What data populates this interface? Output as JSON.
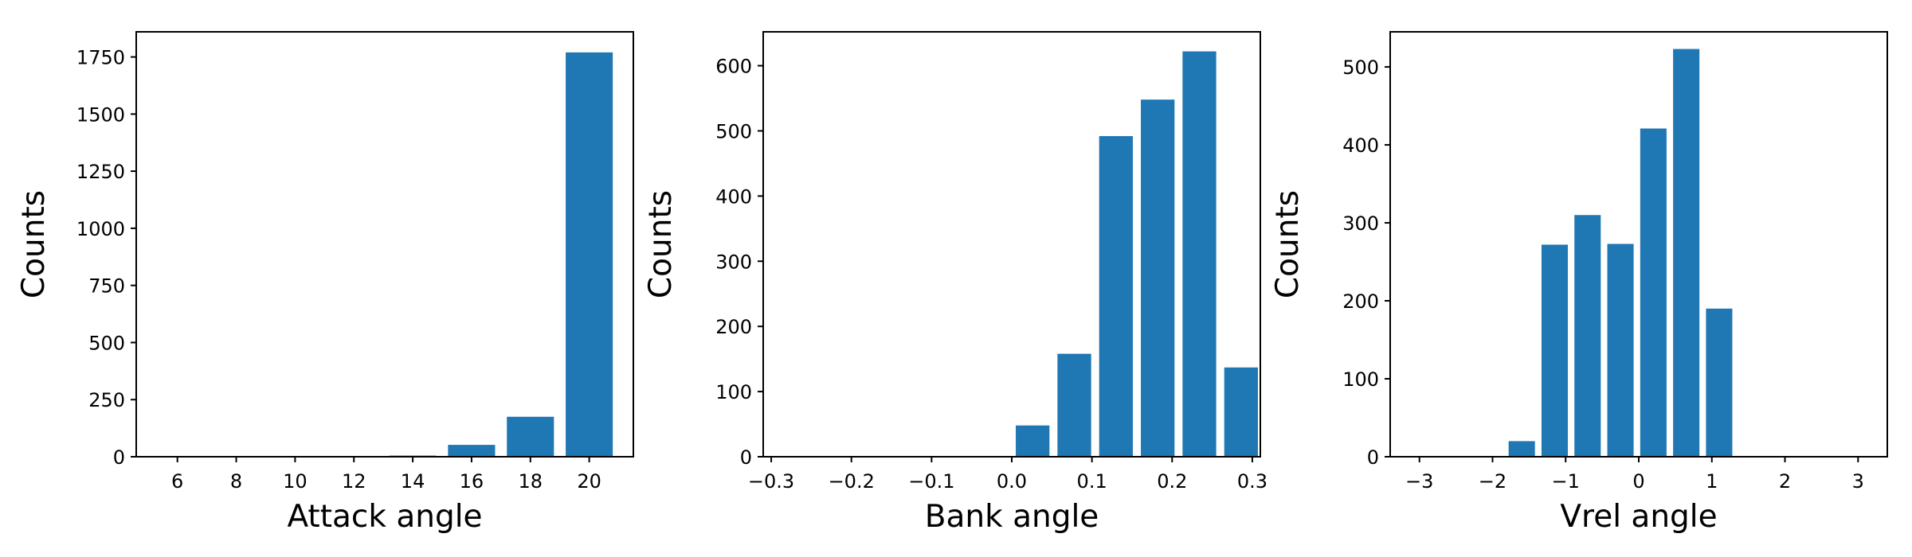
{
  "figure": {
    "background": "#ffffff",
    "bar_color": "#1f77b4"
  },
  "chart_data": [
    {
      "type": "bar",
      "xlabel": "Attack angle",
      "ylabel": "Counts",
      "xlim": [
        4.6,
        21.5
      ],
      "ylim": [
        0,
        1860
      ],
      "x_ticks": [
        6,
        8,
        10,
        12,
        14,
        16,
        18,
        20
      ],
      "x_tick_labels": [
        "6",
        "8",
        "10",
        "12",
        "14",
        "16",
        "18",
        "20"
      ],
      "y_ticks": [
        0,
        250,
        500,
        750,
        1000,
        1250,
        1500,
        1750
      ],
      "y_tick_labels": [
        "0",
        "250",
        "500",
        "750",
        "1000",
        "1250",
        "1500",
        "1750"
      ],
      "bar_width": 1.6,
      "x": [
        6,
        8,
        10,
        12,
        14,
        16,
        18,
        20
      ],
      "values": [
        0,
        1,
        1,
        2,
        5,
        52,
        175,
        1770
      ],
      "grid": false,
      "legend": "none"
    },
    {
      "type": "bar",
      "xlabel": "Bank angle",
      "ylabel": "Counts",
      "xlim": [
        -0.31,
        0.31
      ],
      "ylim": [
        0,
        652
      ],
      "x_ticks": [
        -0.3,
        -0.2,
        -0.1,
        0.0,
        0.1,
        0.2,
        0.3
      ],
      "x_tick_labels": [
        "−0.3",
        "−0.2",
        "−0.1",
        "0.0",
        "0.1",
        "0.2",
        "0.3"
      ],
      "y_ticks": [
        0,
        100,
        200,
        300,
        400,
        500,
        600
      ],
      "y_tick_labels": [
        "0",
        "100",
        "200",
        "300",
        "400",
        "500",
        "600"
      ],
      "bar_width": 0.042,
      "x": [
        -0.286,
        -0.234,
        -0.182,
        -0.13,
        -0.078,
        -0.026,
        0.026,
        0.078,
        0.13,
        0.182,
        0.234
      ],
      "values": [
        0,
        0,
        0,
        0,
        0,
        0,
        48,
        158,
        492,
        548,
        622
      ],
      "extra_x": [
        0.286
      ],
      "extra_values": [
        137
      ],
      "grid": false,
      "legend": "none"
    },
    {
      "type": "bar",
      "xlabel": "Vrel angle",
      "ylabel": "Counts",
      "xlim": [
        -3.4,
        3.4
      ],
      "ylim": [
        0,
        545
      ],
      "x_ticks": [
        -3,
        -2,
        -1,
        0,
        1,
        2,
        3
      ],
      "x_tick_labels": [
        "−3",
        "−2",
        "−1",
        "0",
        "1",
        "2",
        "3"
      ],
      "y_ticks": [
        0,
        100,
        200,
        300,
        400,
        500
      ],
      "y_tick_labels": [
        "0",
        "100",
        "200",
        "300",
        "400",
        "500"
      ],
      "bar_width": 0.36,
      "x": [
        -2.95,
        -2.5,
        -2.05,
        -1.6,
        -1.15,
        -0.7,
        -0.25,
        0.2,
        0.65,
        1.1,
        1.55,
        2.0,
        2.45,
        2.95
      ],
      "values": [
        0,
        0,
        0,
        20,
        272,
        310,
        273,
        421,
        523,
        190,
        0,
        0,
        0,
        0
      ],
      "grid": false,
      "legend": "none"
    }
  ]
}
